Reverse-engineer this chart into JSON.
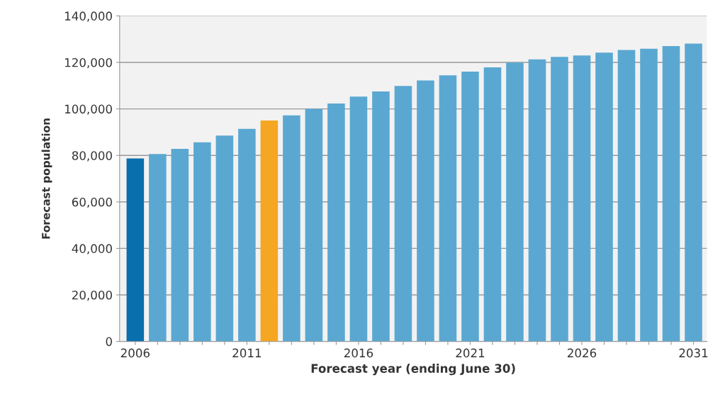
{
  "chart_data": {
    "type": "bar",
    "xlabel": "Forecast year (ending June 30)",
    "ylabel": "Forecast population",
    "categories": [
      "2006",
      null,
      null,
      null,
      null,
      "2011",
      null,
      null,
      null,
      null,
      "2016",
      null,
      null,
      null,
      null,
      "2021",
      null,
      null,
      null,
      null,
      "2026",
      null,
      null,
      null,
      null,
      "2031"
    ],
    "values": [
      78700,
      80600,
      82800,
      85600,
      88500,
      91400,
      95000,
      97200,
      100000,
      102300,
      105300,
      107500,
      109900,
      112200,
      114400,
      116000,
      117900,
      119900,
      121300,
      122400,
      123000,
      124200,
      125300,
      125900,
      127000,
      128100
    ],
    "colors": [
      "#0a6fad",
      "#5aa8d2",
      "#5aa8d2",
      "#5aa8d2",
      "#5aa8d2",
      "#5aa8d2",
      "#f5a623",
      "#5aa8d2",
      "#5aa8d2",
      "#5aa8d2",
      "#5aa8d2",
      "#5aa8d2",
      "#5aa8d2",
      "#5aa8d2",
      "#5aa8d2",
      "#5aa8d2",
      "#5aa8d2",
      "#5aa8d2",
      "#5aa8d2",
      "#5aa8d2",
      "#5aa8d2",
      "#5aa8d2",
      "#5aa8d2",
      "#5aa8d2",
      "#5aa8d2",
      "#5aa8d2"
    ],
    "ylim": [
      0,
      140000
    ],
    "yticks": [
      {
        "value": 0,
        "label": "0"
      },
      {
        "value": 20000,
        "label": "20,000"
      },
      {
        "value": 40000,
        "label": "40,000"
      },
      {
        "value": 60000,
        "label": "60,000"
      },
      {
        "value": 80000,
        "label": "80,000"
      },
      {
        "value": 100000,
        "label": "100,000"
      },
      {
        "value": 120000,
        "label": "120,000"
      },
      {
        "value": 140000,
        "label": "140,000"
      }
    ],
    "grid": "y"
  }
}
